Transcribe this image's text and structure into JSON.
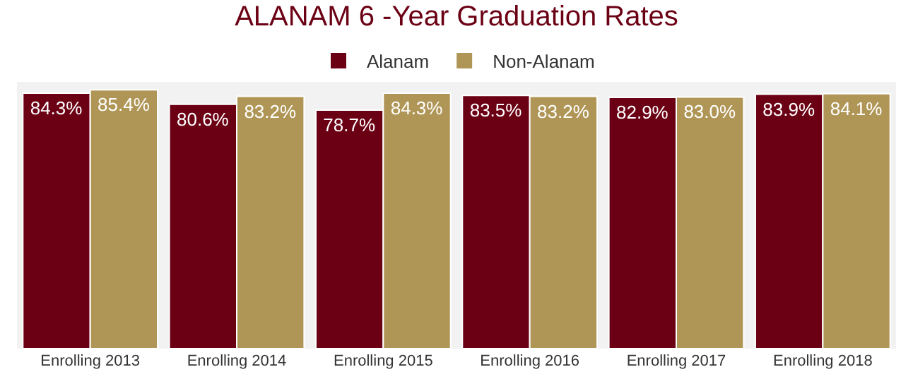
{
  "chart_data": {
    "type": "bar",
    "title": "ALANAM 6 -Year Graduation Rates",
    "categories": [
      "Enrolling 2013",
      "Enrolling 2014",
      "Enrolling 2015",
      "Enrolling 2016",
      "Enrolling 2017",
      "Enrolling 2018"
    ],
    "series": [
      {
        "name": "Alanam",
        "color": "#6b0014",
        "values": [
          84.3,
          80.6,
          78.7,
          83.5,
          82.9,
          83.9
        ],
        "value_labels": [
          "84.3%",
          "80.6%",
          "78.7%",
          "83.5%",
          "82.9%",
          "83.9%"
        ]
      },
      {
        "name": "Non-Alanam",
        "color": "#b09656",
        "values": [
          85.4,
          83.2,
          84.3,
          83.2,
          83.0,
          84.1
        ],
        "value_labels": [
          "85.4%",
          "83.2%",
          "84.3%",
          "83.2%",
          "83.0%",
          "84.1%"
        ]
      }
    ],
    "ylim": [
      0,
      88
    ],
    "grid": false,
    "legend": "top",
    "tick_labels": "x"
  }
}
